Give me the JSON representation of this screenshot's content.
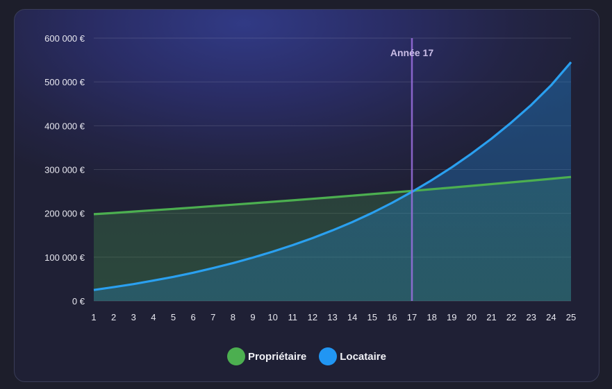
{
  "chart_data": {
    "type": "area",
    "x": [
      1,
      2,
      3,
      4,
      5,
      6,
      7,
      8,
      9,
      10,
      11,
      12,
      13,
      14,
      15,
      16,
      17,
      18,
      19,
      20,
      21,
      22,
      23,
      24,
      25
    ],
    "series": [
      {
        "name": "Propriétaire",
        "color": "#4caf50",
        "values": [
          198000,
          200970,
          203985,
          207044,
          210150,
          213302,
          216502,
          219750,
          223046,
          226392,
          229788,
          233234,
          236733,
          240284,
          243888,
          247547,
          251260,
          255029,
          258854,
          262737,
          266678,
          270678,
          274738,
          278859,
          283042
        ]
      },
      {
        "name": "Locataire",
        "color": "#2196f3",
        "values": [
          25000,
          31500,
          38500,
          46500,
          55000,
          64500,
          75000,
          86500,
          99000,
          112500,
          127500,
          143500,
          161000,
          180000,
          201000,
          224000,
          249000,
          276000,
          305000,
          336500,
          370500,
          407500,
          447500,
          492500,
          545000
        ]
      }
    ],
    "ylim": [
      0,
      600000
    ],
    "y_ticks": [
      0,
      100000,
      200000,
      300000,
      400000,
      500000,
      600000
    ],
    "y_tick_labels": [
      "0 €",
      "100 000 €",
      "200 000 €",
      "300 000 €",
      "400 000 €",
      "500 000 €",
      "600 000 €"
    ],
    "x_tick_labels": [
      "1",
      "2",
      "3",
      "4",
      "5",
      "6",
      "7",
      "8",
      "9",
      "10",
      "11",
      "12",
      "13",
      "14",
      "15",
      "16",
      "17",
      "18",
      "19",
      "20",
      "21",
      "22",
      "23",
      "24",
      "25"
    ],
    "annotation": {
      "x": 17,
      "label": "Année 17",
      "color": "#9b6fe0"
    },
    "grid": true,
    "legend_position": "bottom"
  }
}
